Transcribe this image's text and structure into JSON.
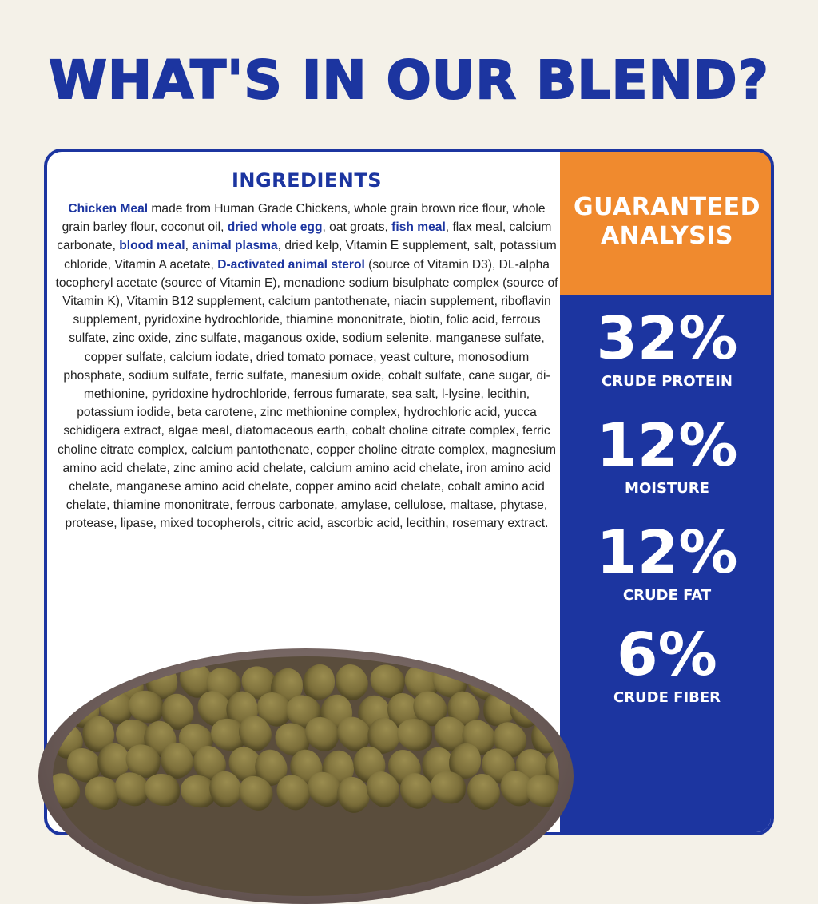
{
  "headline": "WHAT'S IN OUR BLEND?",
  "ingredients": {
    "title": "INGREDIENTS",
    "segments": [
      {
        "text": "Chicken Meal",
        "bold": true
      },
      {
        "text": " made from Human Grade Chickens, whole grain brown rice flour, whole grain barley flour, coconut oil, ",
        "bold": false
      },
      {
        "text": "dried whole egg",
        "bold": true
      },
      {
        "text": ", oat groats, ",
        "bold": false
      },
      {
        "text": "fish meal",
        "bold": true
      },
      {
        "text": ", flax meal, calcium carbonate, ",
        "bold": false
      },
      {
        "text": "blood meal",
        "bold": true
      },
      {
        "text": ", ",
        "bold": false
      },
      {
        "text": "animal plasma",
        "bold": true
      },
      {
        "text": ", dried kelp, Vitamin E supplement, salt, potassium chloride, Vitamin A acetate, ",
        "bold": false
      },
      {
        "text": "D-activated animal sterol",
        "bold": true
      },
      {
        "text": " (source of Vitamin D3), DL-alpha tocopheryl acetate (source of Vitamin E), menadione sodium bisulphate complex (source of Vitamin K), Vitamin B12 supplement, calcium pantothenate, niacin supplement, riboflavin supplement, pyridoxine hydrochloride, thiamine mononitrate, biotin, folic acid, ferrous sulfate, zinc oxide, zinc sulfate, maganous oxide, sodium selenite, manganese sulfate, copper sulfate, calcium iodate, dried tomato pomace, yeast culture, monosodium phosphate, sodium sulfate, ferric sulfate, manesium oxide, cobalt sulfate, cane sugar, di-methionine, pyridoxine hydrochloride, ferrous fumarate, sea salt, l-lysine, lecithin, potassium iodide, beta carotene, zinc methionine complex, hydrochloric acid, yucca schidigera extract, algae meal, diatomaceous earth, cobalt choline citrate complex, ferric choline citrate complex, calcium pantothenate, copper choline citrate complex, magnesium amino acid chelate, zinc amino acid chelate, calcium amino acid chelate, iron amino acid chelate, manganese amino acid chelate, copper amino acid chelate, cobalt amino acid chelate, thiamine mononitrate, ferrous carbonate, amylase, cellulose, maltase, phytase, protease, lipase, mixed tocopherols, citric acid, ascorbic acid, lecithin, rosemary extract.",
        "bold": false
      }
    ]
  },
  "analysis": {
    "title": "GUARANTEED\nANALYSIS",
    "items": [
      {
        "value": "32%",
        "label": "CRUDE PROTEIN"
      },
      {
        "value": "12%",
        "label": "MOISTURE"
      },
      {
        "value": "12%",
        "label": "CRUDE FAT"
      },
      {
        "value": "6%",
        "label": "CRUDE FIBER"
      }
    ]
  },
  "colors": {
    "brand_blue": "#1c35a0",
    "accent_orange": "#f08a2e",
    "background": "#f4f1e8"
  }
}
